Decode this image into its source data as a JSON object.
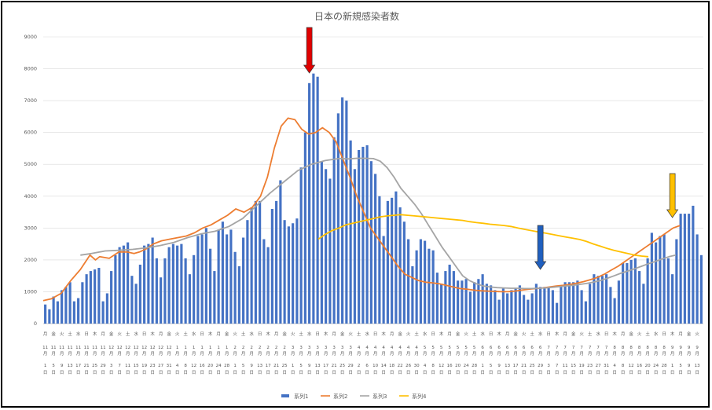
{
  "chart_data": {
    "type": "bar",
    "title": "日本の新規感染者数",
    "ylim": [
      0,
      9000
    ],
    "yticks": [
      0,
      1000,
      2000,
      3000,
      4000,
      5000,
      6000,
      7000,
      8000,
      9000
    ],
    "start_date": "2021-11-01",
    "x_tick_rows": {
      "weekday": [
        "月",
        "火",
        "水",
        "木",
        "金",
        "土",
        "日"
      ],
      "month_suffix": "月",
      "day_suffix": "日"
    },
    "series": [
      {
        "name": "系列1",
        "type": "bar",
        "color": "#4472C4",
        "values": [
          600,
          450,
          850,
          700,
          1050,
          1150,
          1300,
          700,
          800,
          1300,
          1550,
          1650,
          1700,
          1750,
          700,
          950,
          1650,
          2150,
          2400,
          2450,
          2550,
          1500,
          1250,
          1850,
          2450,
          2500,
          2700,
          2050,
          1450,
          2050,
          2400,
          2500,
          2450,
          2500,
          2050,
          1550,
          2150,
          2750,
          2800,
          3000,
          2350,
          1650,
          2950,
          3200,
          2800,
          2950,
          2250,
          1800,
          2700,
          3250,
          3650,
          3850,
          3850,
          2650,
          2400,
          3600,
          3850,
          4500,
          3250,
          3050,
          3150,
          3300,
          4900,
          6000,
          7550,
          7850,
          7750,
          5100,
          4850,
          4550,
          5850,
          6600,
          7100,
          7000,
          5750,
          4850,
          5450,
          5550,
          5600,
          5100,
          4700,
          4000,
          2750,
          3850,
          3950,
          4150,
          3650,
          3200,
          2650,
          1800,
          2300,
          2650,
          2600,
          2350,
          2300,
          1600,
          1250,
          1650,
          1850,
          1650,
          1350,
          1350,
          1400,
          1000,
          1300,
          1400,
          1550,
          1250,
          1200,
          1050,
          750,
          1100,
          950,
          1050,
          1100,
          1200,
          900,
          750,
          950,
          1250,
          1150,
          1150,
          1150,
          1050,
          650,
          1150,
          1300,
          1300,
          1300,
          1350,
          1050,
          700,
          1250,
          1550,
          1500,
          1500,
          1550,
          1150,
          800,
          1350,
          1900,
          1900,
          2000,
          2050,
          1650,
          1250,
          2050,
          2850,
          2550,
          2750,
          2800,
          2050,
          1550,
          2650,
          3450,
          3450,
          3450,
          3700,
          2800,
          2150
        ]
      },
      {
        "name": "系列2",
        "type": "line",
        "color": "#ED7D31",
        "points": [
          [
            0,
            720
          ],
          [
            6,
            780
          ],
          [
            13,
            950
          ],
          [
            20,
            1350
          ],
          [
            27,
            1700
          ],
          [
            34,
            2150
          ],
          [
            38,
            2000
          ],
          [
            41,
            2100
          ],
          [
            48,
            2050
          ],
          [
            55,
            2250
          ],
          [
            61,
            2250
          ],
          [
            66,
            2200
          ],
          [
            70,
            2250
          ],
          [
            75,
            2350
          ],
          [
            80,
            2500
          ],
          [
            86,
            2600
          ],
          [
            92,
            2650
          ],
          [
            98,
            2700
          ],
          [
            104,
            2750
          ],
          [
            110,
            2850
          ],
          [
            116,
            3000
          ],
          [
            122,
            3100
          ],
          [
            128,
            3250
          ],
          [
            134,
            3400
          ],
          [
            140,
            3600
          ],
          [
            146,
            3500
          ],
          [
            152,
            3650
          ],
          [
            158,
            4000
          ],
          [
            163,
            4600
          ],
          [
            168,
            5500
          ],
          [
            173,
            6200
          ],
          [
            178,
            6450
          ],
          [
            183,
            6400
          ],
          [
            188,
            6100
          ],
          [
            193,
            5950
          ],
          [
            198,
            6000
          ],
          [
            203,
            6150
          ],
          [
            208,
            6000
          ],
          [
            213,
            5700
          ],
          [
            218,
            5150
          ],
          [
            223,
            4600
          ],
          [
            228,
            4000
          ],
          [
            233,
            3500
          ],
          [
            238,
            3000
          ],
          [
            243,
            2700
          ],
          [
            248,
            2400
          ],
          [
            253,
            2100
          ],
          [
            258,
            1800
          ],
          [
            263,
            1550
          ],
          [
            268,
            1450
          ],
          [
            273,
            1350
          ],
          [
            278,
            1300
          ],
          [
            283,
            1280
          ],
          [
            288,
            1250
          ],
          [
            293,
            1200
          ],
          [
            298,
            1150
          ],
          [
            303,
            1100
          ],
          [
            308,
            1080
          ],
          [
            313,
            1050
          ],
          [
            318,
            1030
          ],
          [
            323,
            1020
          ],
          [
            328,
            1010
          ],
          [
            333,
            1000
          ],
          [
            338,
            1000
          ],
          [
            343,
            1020
          ],
          [
            348,
            1050
          ],
          [
            353,
            1080
          ],
          [
            358,
            1100
          ],
          [
            363,
            1120
          ],
          [
            368,
            1150
          ],
          [
            373,
            1180
          ],
          [
            378,
            1200
          ],
          [
            383,
            1230
          ],
          [
            388,
            1270
          ],
          [
            393,
            1320
          ],
          [
            398,
            1380
          ],
          [
            403,
            1450
          ],
          [
            408,
            1550
          ],
          [
            413,
            1680
          ],
          [
            418,
            1800
          ],
          [
            423,
            1950
          ],
          [
            428,
            2100
          ],
          [
            433,
            2250
          ],
          [
            438,
            2400
          ],
          [
            443,
            2550
          ],
          [
            448,
            2700
          ],
          [
            453,
            2850
          ],
          [
            458,
            3000
          ],
          [
            463,
            3080
          ]
        ]
      },
      {
        "name": "系列3",
        "type": "line",
        "color": "#A5A5A5",
        "points": [
          [
            27,
            2150
          ],
          [
            35,
            2200
          ],
          [
            45,
            2280
          ],
          [
            55,
            2300
          ],
          [
            65,
            2330
          ],
          [
            75,
            2380
          ],
          [
            85,
            2450
          ],
          [
            95,
            2550
          ],
          [
            105,
            2700
          ],
          [
            115,
            2820
          ],
          [
            125,
            2900
          ],
          [
            135,
            3050
          ],
          [
            145,
            3300
          ],
          [
            155,
            3700
          ],
          [
            165,
            4100
          ],
          [
            175,
            4450
          ],
          [
            185,
            4800
          ],
          [
            195,
            5000
          ],
          [
            205,
            5120
          ],
          [
            215,
            5180
          ],
          [
            222,
            5170
          ],
          [
            228,
            5190
          ],
          [
            233,
            5190
          ],
          [
            240,
            5180
          ],
          [
            245,
            5100
          ],
          [
            250,
            4900
          ],
          [
            255,
            4600
          ],
          [
            260,
            4250
          ],
          [
            265,
            4000
          ],
          [
            270,
            3750
          ],
          [
            275,
            3450
          ],
          [
            280,
            3100
          ],
          [
            285,
            2750
          ],
          [
            290,
            2400
          ],
          [
            295,
            2100
          ],
          [
            300,
            1800
          ],
          [
            305,
            1500
          ],
          [
            310,
            1350
          ],
          [
            315,
            1250
          ],
          [
            320,
            1180
          ],
          [
            325,
            1150
          ],
          [
            330,
            1130
          ],
          [
            335,
            1120
          ],
          [
            340,
            1110
          ],
          [
            345,
            1110
          ],
          [
            350,
            1100
          ],
          [
            355,
            1100
          ],
          [
            360,
            1110
          ],
          [
            365,
            1120
          ],
          [
            370,
            1140
          ],
          [
            375,
            1160
          ],
          [
            380,
            1180
          ],
          [
            385,
            1200
          ],
          [
            390,
            1230
          ],
          [
            395,
            1260
          ],
          [
            400,
            1300
          ],
          [
            405,
            1350
          ],
          [
            410,
            1420
          ],
          [
            415,
            1500
          ],
          [
            420,
            1580
          ],
          [
            425,
            1650
          ],
          [
            430,
            1720
          ],
          [
            435,
            1800
          ],
          [
            440,
            1880
          ],
          [
            445,
            1950
          ],
          [
            450,
            2030
          ],
          [
            455,
            2100
          ],
          [
            460,
            2150
          ]
        ]
      },
      {
        "name": "系列4",
        "type": "line",
        "color": "#FFC000",
        "points": [
          [
            200,
            2650
          ],
          [
            205,
            2800
          ],
          [
            210,
            2920
          ],
          [
            215,
            3000
          ],
          [
            220,
            3100
          ],
          [
            225,
            3150
          ],
          [
            230,
            3200
          ],
          [
            235,
            3250
          ],
          [
            240,
            3300
          ],
          [
            245,
            3350
          ],
          [
            250,
            3380
          ],
          [
            255,
            3400
          ],
          [
            260,
            3420
          ],
          [
            265,
            3400
          ],
          [
            270,
            3380
          ],
          [
            275,
            3360
          ],
          [
            280,
            3340
          ],
          [
            285,
            3320
          ],
          [
            290,
            3300
          ],
          [
            295,
            3280
          ],
          [
            300,
            3260
          ],
          [
            305,
            3240
          ],
          [
            310,
            3200
          ],
          [
            315,
            3170
          ],
          [
            320,
            3150
          ],
          [
            325,
            3120
          ],
          [
            330,
            3100
          ],
          [
            335,
            3080
          ],
          [
            340,
            3050
          ],
          [
            345,
            3000
          ],
          [
            350,
            2960
          ],
          [
            355,
            2920
          ],
          [
            360,
            2880
          ],
          [
            365,
            2840
          ],
          [
            370,
            2800
          ],
          [
            375,
            2760
          ],
          [
            380,
            2720
          ],
          [
            385,
            2680
          ],
          [
            390,
            2640
          ],
          [
            395,
            2580
          ],
          [
            400,
            2500
          ],
          [
            405,
            2430
          ],
          [
            410,
            2360
          ],
          [
            415,
            2300
          ],
          [
            420,
            2250
          ],
          [
            425,
            2200
          ],
          [
            430,
            2150
          ],
          [
            435,
            2120
          ],
          [
            440,
            2100
          ]
        ]
      }
    ],
    "legend_position": "bottom",
    "gridlines": true,
    "annotations": [
      {
        "kind": "arrow-down",
        "color": "#E00000",
        "x_index": 64
      },
      {
        "kind": "arrow-down",
        "color": "#1F5FBF",
        "x_index": 120
      },
      {
        "kind": "arrow-down",
        "color": "#FFC000",
        "x_index": 152
      }
    ]
  }
}
